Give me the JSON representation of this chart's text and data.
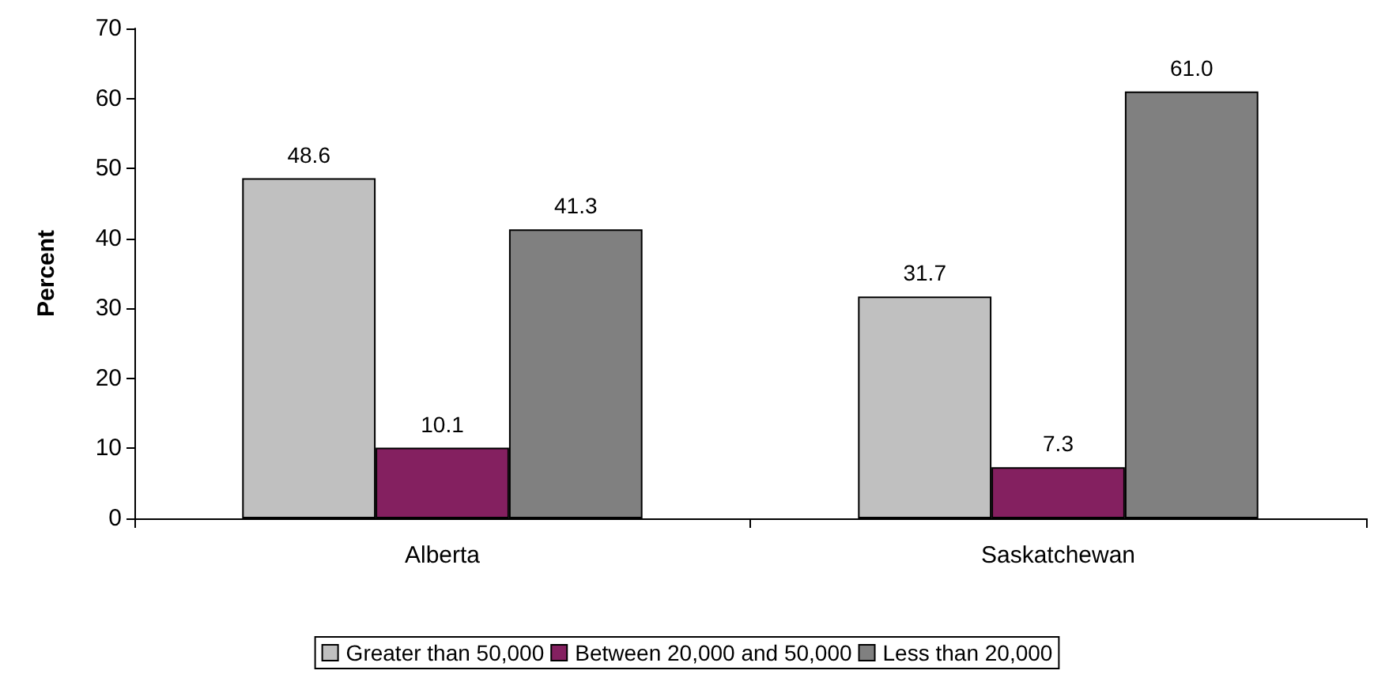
{
  "chart_data": {
    "type": "bar",
    "ylabel": "Percent",
    "categories": [
      "Alberta",
      "Saskatchewan"
    ],
    "series": [
      {
        "name": "Greater than 50,000",
        "color": "#c0c0c0",
        "values": [
          48.6,
          31.7
        ],
        "value_labels": [
          "48.6",
          "31.7"
        ]
      },
      {
        "name": "Between 20,000 and 50,000",
        "color": "#842060",
        "values": [
          10.1,
          7.3
        ],
        "value_labels": [
          "10.1",
          "7.3"
        ]
      },
      {
        "name": "Less than 20,000",
        "color": "#808080",
        "values": [
          41.3,
          61.0
        ],
        "value_labels": [
          "41.3",
          "61.0"
        ]
      }
    ],
    "ylim": [
      0,
      70
    ],
    "yticks": [
      0,
      10,
      20,
      30,
      40,
      50,
      60,
      70
    ],
    "grid": false,
    "legend": "bottom"
  }
}
